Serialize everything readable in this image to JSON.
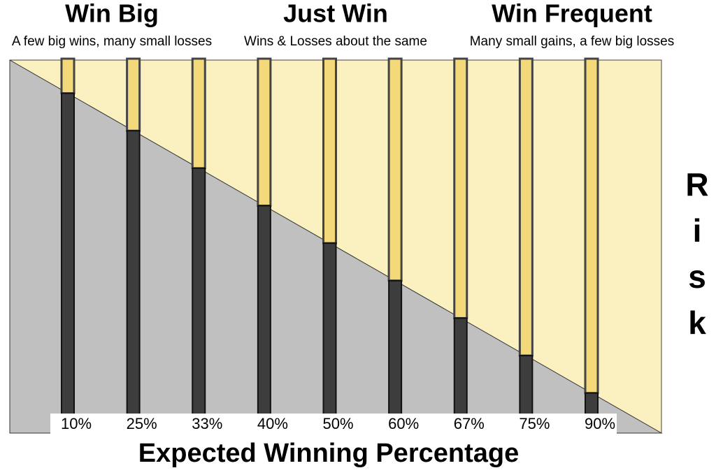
{
  "headings": [
    {
      "title": "Win Big",
      "subtitle": "A few big wins, many small losses"
    },
    {
      "title": "Just Win",
      "subtitle": "Wins & Losses about the same"
    },
    {
      "title": "Win Frequent",
      "subtitle": "Many small gains, a few big losses"
    }
  ],
  "categories": [
    "10%",
    "25%",
    "33%",
    "40%",
    "50%",
    "60%",
    "67%",
    "75%",
    "90%"
  ],
  "axis_label": "Expected Winning Percentage",
  "side_label": "Risk"
}
